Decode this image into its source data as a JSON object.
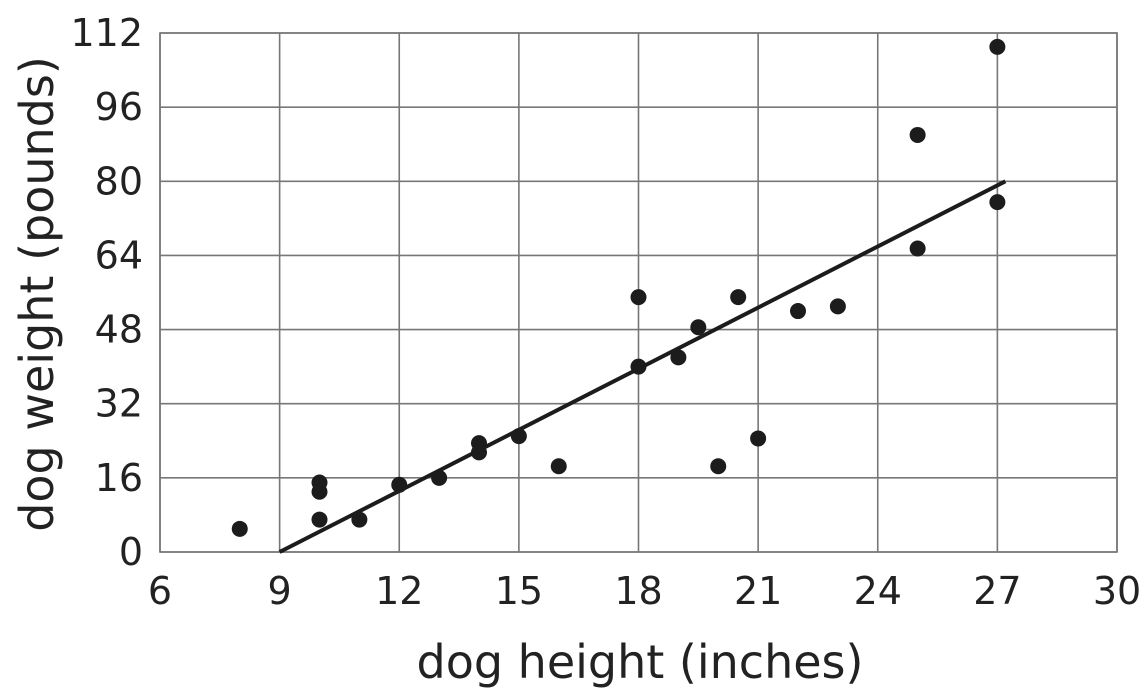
{
  "chart_data": {
    "type": "scatter",
    "title": "",
    "xlabel": "dog height (inches)",
    "ylabel": "dog weight (pounds)",
    "xlim": [
      6,
      30
    ],
    "ylim": [
      0,
      112
    ],
    "xticks": [
      6,
      9,
      12,
      15,
      18,
      21,
      24,
      27,
      30
    ],
    "yticks": [
      0,
      16,
      32,
      48,
      64,
      80,
      96,
      112
    ],
    "grid": true,
    "points": [
      {
        "x": 8,
        "y": 5
      },
      {
        "x": 10,
        "y": 15
      },
      {
        "x": 10,
        "y": 13
      },
      {
        "x": 10,
        "y": 7
      },
      {
        "x": 11,
        "y": 7
      },
      {
        "x": 12,
        "y": 14.5
      },
      {
        "x": 13,
        "y": 16
      },
      {
        "x": 14,
        "y": 23.5
      },
      {
        "x": 14,
        "y": 21.5
      },
      {
        "x": 15,
        "y": 25
      },
      {
        "x": 16,
        "y": 18.5
      },
      {
        "x": 18,
        "y": 55
      },
      {
        "x": 18,
        "y": 40
      },
      {
        "x": 19,
        "y": 42
      },
      {
        "x": 19.5,
        "y": 48.5
      },
      {
        "x": 20,
        "y": 18.5
      },
      {
        "x": 20.5,
        "y": 55
      },
      {
        "x": 21,
        "y": 24.5
      },
      {
        "x": 22,
        "y": 52
      },
      {
        "x": 23,
        "y": 53
      },
      {
        "x": 25,
        "y": 90
      },
      {
        "x": 25,
        "y": 65.5
      },
      {
        "x": 27,
        "y": 109
      },
      {
        "x": 27,
        "y": 75.5
      }
    ],
    "fit_line": {
      "x": [
        9,
        27.2
      ],
      "y": [
        0,
        80
      ]
    }
  }
}
